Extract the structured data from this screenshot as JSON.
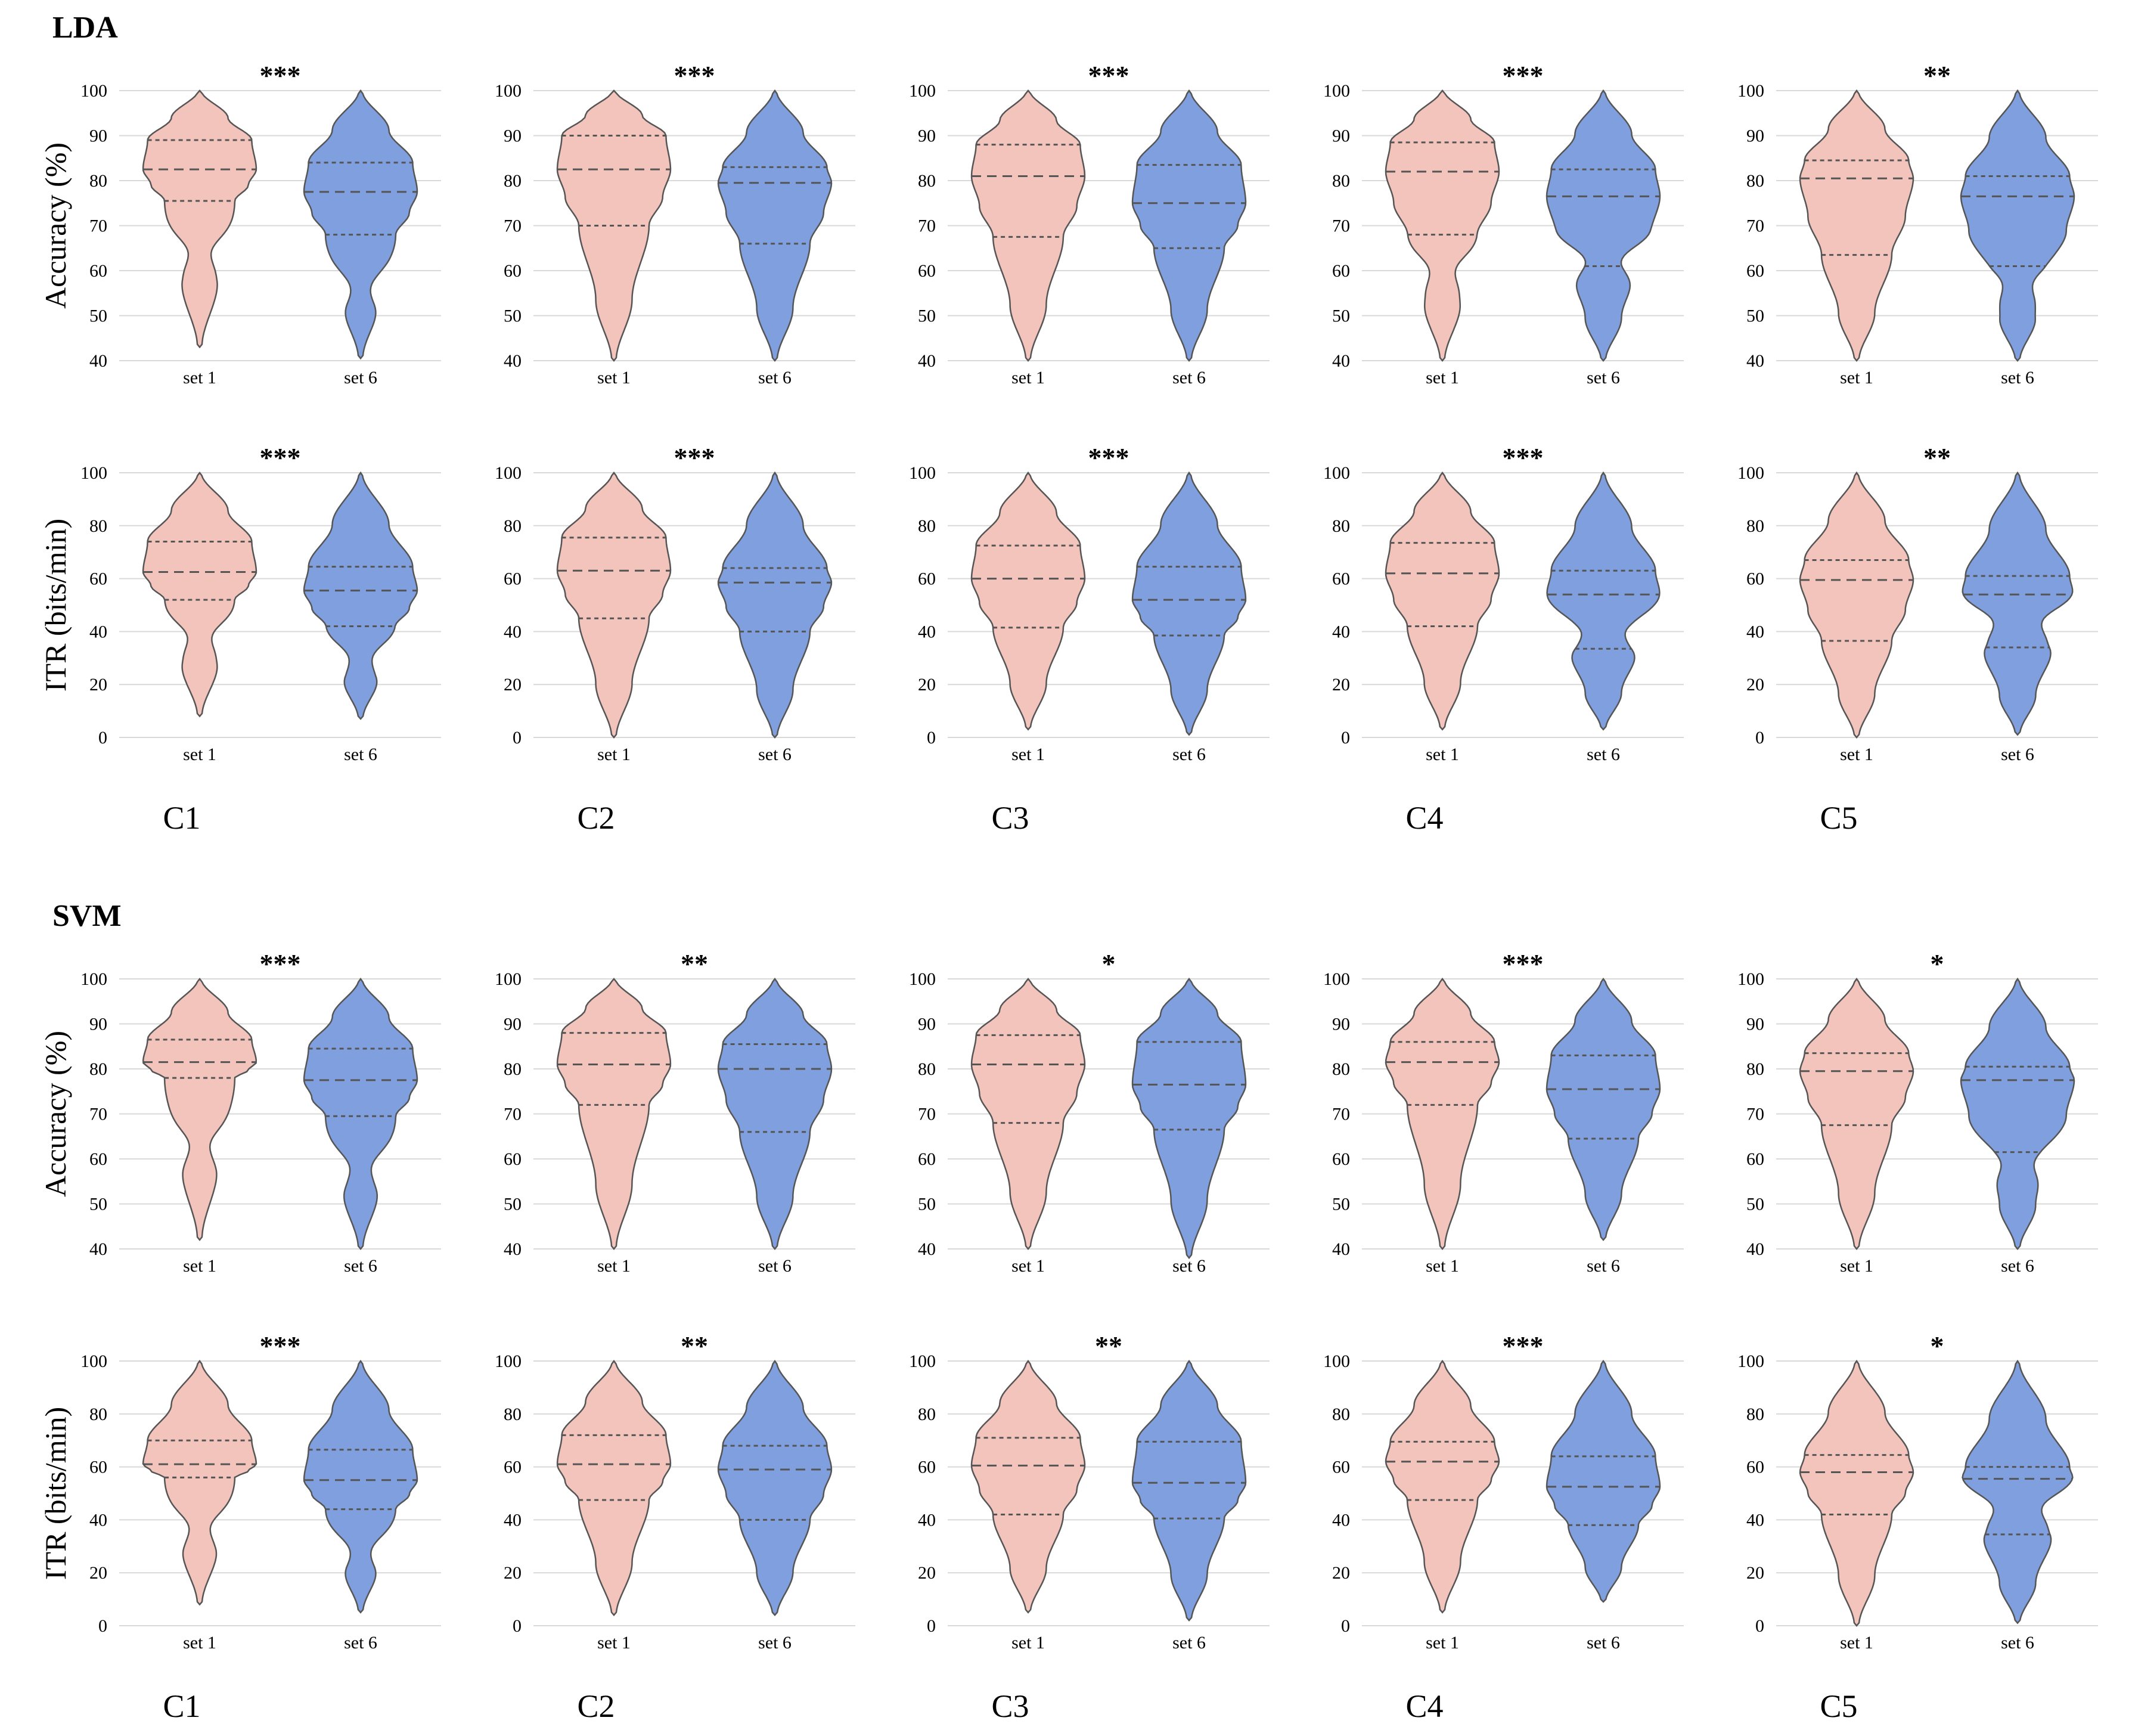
{
  "colors": {
    "set1": "#f2c4bb",
    "set6": "#7f9fdf",
    "outline": "#555555",
    "grid": "#d9d9d9"
  },
  "sections": [
    {
      "label": "LDA"
    },
    {
      "label": "SVM"
    }
  ],
  "chart_data": {
    "type": "violin",
    "sections": [
      "LDA",
      "SVM"
    ],
    "columns": [
      "C1",
      "C2",
      "C3",
      "C4",
      "C5"
    ],
    "categories": [
      "set 1",
      "set 6"
    ],
    "metrics": [
      {
        "ylabel": "Accuracy (%)",
        "ylim": [
          40,
          100
        ],
        "ticks": [
          40,
          50,
          60,
          70,
          80,
          90,
          100
        ]
      },
      {
        "ylabel": "ITR (bits/min)",
        "ylim": [
          0,
          100
        ],
        "ticks": [
          0,
          20,
          40,
          60,
          80,
          100
        ]
      }
    ],
    "grid": true,
    "panels": [
      {
        "section": "LDA",
        "metric": "Accuracy (%)",
        "column": "C1",
        "sig": "***",
        "series": [
          {
            "name": "set 1",
            "min": 43,
            "max": 100,
            "q1": 75.5,
            "median": 82.5,
            "q3": 89,
            "neck": 64
          },
          {
            "name": "set 6",
            "min": 40.5,
            "max": 100,
            "q1": 68,
            "median": 77.5,
            "q3": 84,
            "neck": 56
          }
        ]
      },
      {
        "section": "LDA",
        "metric": "Accuracy (%)",
        "column": "C2",
        "sig": "***",
        "series": [
          {
            "name": "set 1",
            "min": 40,
            "max": 100,
            "q1": 70,
            "median": 82.5,
            "q3": 90,
            "neck": null
          },
          {
            "name": "set 6",
            "min": 40,
            "max": 100,
            "q1": 66,
            "median": 79.5,
            "q3": 83,
            "neck": null
          }
        ]
      },
      {
        "section": "LDA",
        "metric": "Accuracy (%)",
        "column": "C3",
        "sig": "***",
        "series": [
          {
            "name": "set 1",
            "min": 40,
            "max": 100,
            "q1": 67.5,
            "median": 81,
            "q3": 88,
            "neck": null
          },
          {
            "name": "set 6",
            "min": 40,
            "max": 100,
            "q1": 65,
            "median": 75,
            "q3": 83.5,
            "neck": null
          }
        ]
      },
      {
        "section": "LDA",
        "metric": "Accuracy (%)",
        "column": "C4",
        "sig": "***",
        "series": [
          {
            "name": "set 1",
            "min": 40,
            "max": 100,
            "q1": 68,
            "median": 82,
            "q3": 88.5,
            "neck": 60
          },
          {
            "name": "set 6",
            "min": 40,
            "max": 100,
            "q1": 61,
            "median": 76.5,
            "q3": 82.5,
            "neck": 62
          }
        ]
      },
      {
        "section": "LDA",
        "metric": "Accuracy (%)",
        "column": "C5",
        "sig": "**",
        "series": [
          {
            "name": "set 1",
            "min": 40,
            "max": 100,
            "q1": 63.5,
            "median": 80.5,
            "q3": 84.5,
            "neck": null
          },
          {
            "name": "set 6",
            "min": 40,
            "max": 100,
            "q1": 61,
            "median": 76.5,
            "q3": 81,
            "neck": 57
          }
        ]
      },
      {
        "section": "LDA",
        "metric": "ITR (bits/min)",
        "column": "C1",
        "sig": "***",
        "series": [
          {
            "name": "set 1",
            "min": 8,
            "max": 100,
            "q1": 52,
            "median": 62.5,
            "q3": 74,
            "neck": 38
          },
          {
            "name": "set 6",
            "min": 7,
            "max": 100,
            "q1": 42,
            "median": 55.5,
            "q3": 64.5,
            "neck": 30
          }
        ]
      },
      {
        "section": "LDA",
        "metric": "ITR (bits/min)",
        "column": "C2",
        "sig": "***",
        "series": [
          {
            "name": "set 1",
            "min": 0,
            "max": 100,
            "q1": 45,
            "median": 63,
            "q3": 75.5,
            "neck": null
          },
          {
            "name": "set 6",
            "min": 0,
            "max": 100,
            "q1": 40,
            "median": 58.5,
            "q3": 64,
            "neck": null
          }
        ]
      },
      {
        "section": "LDA",
        "metric": "ITR (bits/min)",
        "column": "C3",
        "sig": "***",
        "series": [
          {
            "name": "set 1",
            "min": 3,
            "max": 100,
            "q1": 41.5,
            "median": 60,
            "q3": 72.5,
            "neck": null
          },
          {
            "name": "set 6",
            "min": 1,
            "max": 100,
            "q1": 38.5,
            "median": 52,
            "q3": 64.5,
            "neck": null
          }
        ]
      },
      {
        "section": "LDA",
        "metric": "ITR (bits/min)",
        "column": "C4",
        "sig": "***",
        "series": [
          {
            "name": "set 1",
            "min": 3,
            "max": 100,
            "q1": 42,
            "median": 62,
            "q3": 73.5,
            "neck": null
          },
          {
            "name": "set 6",
            "min": 3,
            "max": 100,
            "q1": 33.5,
            "median": 54,
            "q3": 63,
            "neck": 40
          }
        ]
      },
      {
        "section": "LDA",
        "metric": "ITR (bits/min)",
        "column": "C5",
        "sig": "**",
        "series": [
          {
            "name": "set 1",
            "min": 0,
            "max": 100,
            "q1": 36.5,
            "median": 59.5,
            "q3": 67,
            "neck": null
          },
          {
            "name": "set 6",
            "min": 1,
            "max": 100,
            "q1": 34,
            "median": 54,
            "q3": 61,
            "neck": 43
          }
        ]
      },
      {
        "section": "SVM",
        "metric": "Accuracy (%)",
        "column": "C1",
        "sig": "***",
        "series": [
          {
            "name": "set 1",
            "min": 42,
            "max": 100,
            "q1": 78,
            "median": 81.5,
            "q3": 86.5,
            "neck": 63
          },
          {
            "name": "set 6",
            "min": 40,
            "max": 100,
            "q1": 69.5,
            "median": 77.5,
            "q3": 84.5,
            "neck": 58
          }
        ]
      },
      {
        "section": "SVM",
        "metric": "Accuracy (%)",
        "column": "C2",
        "sig": "**",
        "series": [
          {
            "name": "set 1",
            "min": 40,
            "max": 100,
            "q1": 72,
            "median": 81,
            "q3": 88,
            "neck": null
          },
          {
            "name": "set 6",
            "min": 40,
            "max": 100,
            "q1": 66,
            "median": 80,
            "q3": 85.5,
            "neck": null
          }
        ]
      },
      {
        "section": "SVM",
        "metric": "Accuracy (%)",
        "column": "C3",
        "sig": "*",
        "series": [
          {
            "name": "set 1",
            "min": 40,
            "max": 100,
            "q1": 68,
            "median": 81,
            "q3": 87.5,
            "neck": null
          },
          {
            "name": "set 6",
            "min": 38,
            "max": 100,
            "q1": 66.5,
            "median": 76.5,
            "q3": 86,
            "neck": null
          }
        ]
      },
      {
        "section": "SVM",
        "metric": "Accuracy (%)",
        "column": "C4",
        "sig": "***",
        "series": [
          {
            "name": "set 1",
            "min": 40,
            "max": 100,
            "q1": 72,
            "median": 81.5,
            "q3": 86,
            "neck": null
          },
          {
            "name": "set 6",
            "min": 42,
            "max": 100,
            "q1": 64.5,
            "median": 75.5,
            "q3": 83,
            "neck": null
          }
        ]
      },
      {
        "section": "SVM",
        "metric": "Accuracy (%)",
        "column": "C5",
        "sig": "*",
        "series": [
          {
            "name": "set 1",
            "min": 40,
            "max": 100,
            "q1": 67.5,
            "median": 79.5,
            "q3": 83.5,
            "neck": null
          },
          {
            "name": "set 6",
            "min": 40,
            "max": 100,
            "q1": 61.5,
            "median": 77.5,
            "q3": 80.5,
            "neck": 59
          }
        ]
      },
      {
        "section": "SVM",
        "metric": "ITR (bits/min)",
        "column": "C1",
        "sig": "***",
        "series": [
          {
            "name": "set 1",
            "min": 8,
            "max": 100,
            "q1": 56,
            "median": 61,
            "q3": 70,
            "neck": 37
          },
          {
            "name": "set 6",
            "min": 5,
            "max": 100,
            "q1": 44,
            "median": 55,
            "q3": 66.5,
            "neck": 28
          }
        ]
      },
      {
        "section": "SVM",
        "metric": "ITR (bits/min)",
        "column": "C2",
        "sig": "**",
        "series": [
          {
            "name": "set 1",
            "min": 4,
            "max": 100,
            "q1": 47.5,
            "median": 61,
            "q3": 72,
            "neck": null
          },
          {
            "name": "set 6",
            "min": 4,
            "max": 100,
            "q1": 40,
            "median": 59,
            "q3": 68,
            "neck": null
          }
        ]
      },
      {
        "section": "SVM",
        "metric": "ITR (bits/min)",
        "column": "C3",
        "sig": "**",
        "series": [
          {
            "name": "set 1",
            "min": 5,
            "max": 100,
            "q1": 42,
            "median": 60.5,
            "q3": 71,
            "neck": null
          },
          {
            "name": "set 6",
            "min": 2,
            "max": 100,
            "q1": 40.5,
            "median": 54,
            "q3": 69.5,
            "neck": null
          }
        ]
      },
      {
        "section": "SVM",
        "metric": "ITR (bits/min)",
        "column": "C4",
        "sig": "***",
        "series": [
          {
            "name": "set 1",
            "min": 5,
            "max": 100,
            "q1": 47.5,
            "median": 62,
            "q3": 69.5,
            "neck": null
          },
          {
            "name": "set 6",
            "min": 9,
            "max": 100,
            "q1": 38,
            "median": 52.5,
            "q3": 64,
            "neck": null
          }
        ]
      },
      {
        "section": "SVM",
        "metric": "ITR (bits/min)",
        "column": "C5",
        "sig": "*",
        "series": [
          {
            "name": "set 1",
            "min": 0,
            "max": 100,
            "q1": 42,
            "median": 58,
            "q3": 64.5,
            "neck": null
          },
          {
            "name": "set 6",
            "min": 1,
            "max": 100,
            "q1": 34.5,
            "median": 55.5,
            "q3": 60,
            "neck": 44
          }
        ]
      }
    ]
  }
}
